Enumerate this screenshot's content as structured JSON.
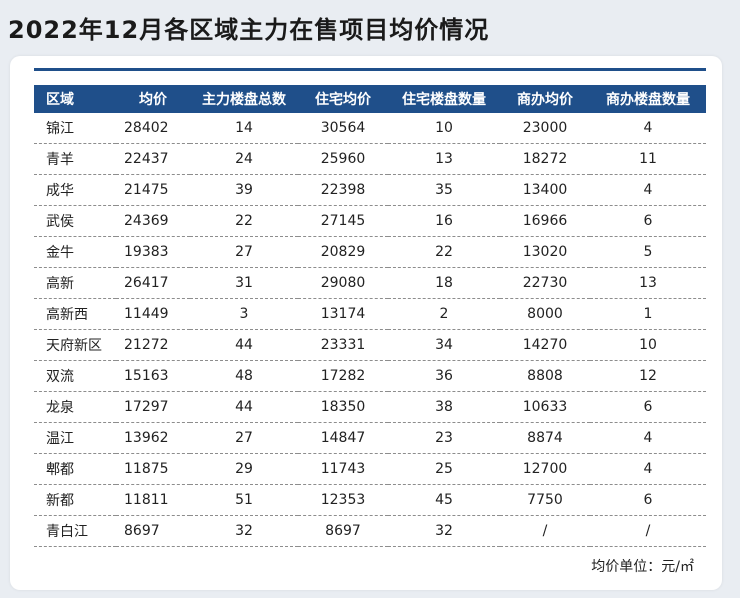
{
  "title": "2022年12月各区域主力在售项目均价情况",
  "table": {
    "headers": [
      "区域",
      "均价",
      "主力楼盘总数",
      "住宅均价",
      "住宅楼盘数量",
      "商办均价",
      "商办楼盘数量"
    ],
    "rows": [
      [
        "锦江",
        "28402",
        "14",
        "30564",
        "10",
        "23000",
        "4"
      ],
      [
        "青羊",
        "22437",
        "24",
        "25960",
        "13",
        "18272",
        "11"
      ],
      [
        "成华",
        "21475",
        "39",
        "22398",
        "35",
        "13400",
        "4"
      ],
      [
        "武侯",
        "24369",
        "22",
        "27145",
        "16",
        "16966",
        "6"
      ],
      [
        "金牛",
        "19383",
        "27",
        "20829",
        "22",
        "13020",
        "5"
      ],
      [
        "高新",
        "26417",
        "31",
        "29080",
        "18",
        "22730",
        "13"
      ],
      [
        "高新西",
        "11449",
        "3",
        "13174",
        "2",
        "8000",
        "1"
      ],
      [
        "天府新区",
        "21272",
        "44",
        "23331",
        "34",
        "14270",
        "10"
      ],
      [
        "双流",
        "15163",
        "48",
        "17282",
        "36",
        "8808",
        "12"
      ],
      [
        "龙泉",
        "17297",
        "44",
        "18350",
        "38",
        "10633",
        "6"
      ],
      [
        "温江",
        "13962",
        "27",
        "14847",
        "23",
        "8874",
        "4"
      ],
      [
        "郫都",
        "11875",
        "29",
        "11743",
        "25",
        "12700",
        "4"
      ],
      [
        "新都",
        "11811",
        "51",
        "12353",
        "45",
        "7750",
        "6"
      ],
      [
        "青白江",
        "8697",
        "32",
        "8697",
        "32",
        "/",
        "/"
      ]
    ]
  },
  "unit_note": "均价单位：元/㎡",
  "colors": {
    "header_bg": "#1f4f8a",
    "page_bg": "#e9edf2"
  }
}
